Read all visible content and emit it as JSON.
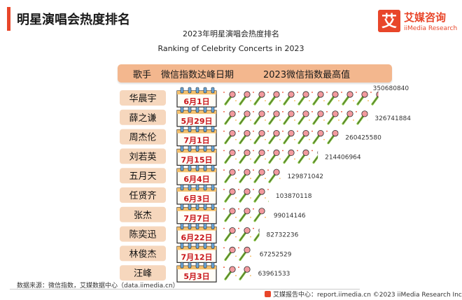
{
  "page": {
    "title": "明星演唱会热度排名"
  },
  "logo": {
    "glyph": "艾",
    "name": "艾媒咨询",
    "sub": "iiMedia Research"
  },
  "header": {
    "col_singer": "歌手",
    "col_date": "微信指数达峰日期",
    "col_value": "2023微信指数最高值"
  },
  "footer": {
    "source": "数据来源：微信指数，艾媒数据中心（data.iimedia.cn）",
    "right": "艾媒报告中心：report.iimedia.cn  ©2023  iiMedia Research  Inc"
  },
  "colors": {
    "accent": "#e8462a",
    "header": "#f3b78e",
    "name_box": "#f6d7bd",
    "date_red": "#c8141a",
    "mic_head": "#f29a9e",
    "mic_handle": "#7fbf3a"
  },
  "chart_data": {
    "type": "bar",
    "title": "2023年明星演唱会热度排名",
    "subtitle": "Ranking of Celebrity Concerts in 2023",
    "categories": [
      "华晨宇",
      "薛之谦",
      "周杰伦",
      "刘若英",
      "五月天",
      "任贤齐",
      "张杰",
      "陈奕迅",
      "林俊杰",
      "汪峰"
    ],
    "peak_dates": [
      "6月1日",
      "5月29日",
      "7月1日",
      "7月15日",
      "6月4日",
      "6月3日",
      "7月7日",
      "6月22日",
      "7月12日",
      "5月3日"
    ],
    "values": [
      350680840,
      326741884,
      260425580,
      214406964,
      129871042,
      103870118,
      99014146,
      82732236,
      67252529,
      63961533
    ],
    "value_labels": [
      "350680840",
      "326741884",
      "260425580",
      "214406964",
      "129871042",
      "103870118",
      "99014146",
      "82732236",
      "67252529",
      "63961533"
    ],
    "ylabel": "2023微信指数最高值",
    "xlabel": "歌手",
    "legend": "none",
    "grid": false
  }
}
